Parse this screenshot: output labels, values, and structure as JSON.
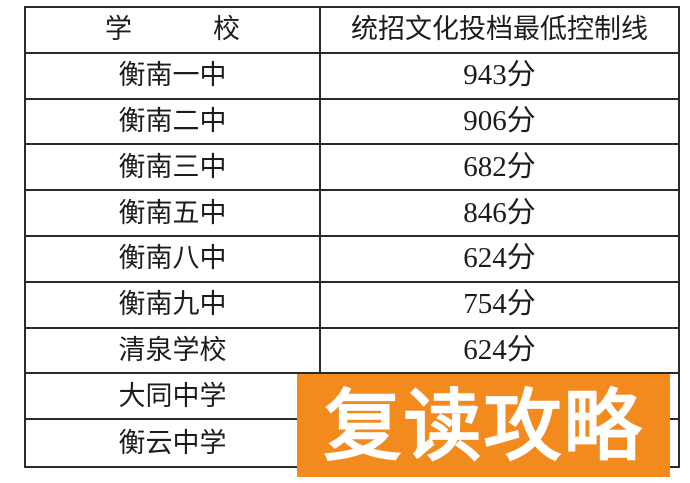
{
  "table": {
    "headers": [
      "学　　　校",
      "统招文化投档最低控制线"
    ],
    "rows": [
      {
        "school": "衡南一中",
        "score": "943分"
      },
      {
        "school": "衡南二中",
        "score": "906分"
      },
      {
        "school": "衡南三中",
        "score": "682分"
      },
      {
        "school": "衡南五中",
        "score": "846分"
      },
      {
        "school": "衡南八中",
        "score": "624分"
      },
      {
        "school": "衡南九中",
        "score": "754分"
      },
      {
        "school": "清泉学校",
        "score": "624分"
      },
      {
        "school": "大同中学"
      },
      {
        "school": "衡云中学"
      }
    ]
  },
  "banner": {
    "label": "复读攻略",
    "background_color": "#F28A1E",
    "text_color": "#FFFFFF"
  }
}
